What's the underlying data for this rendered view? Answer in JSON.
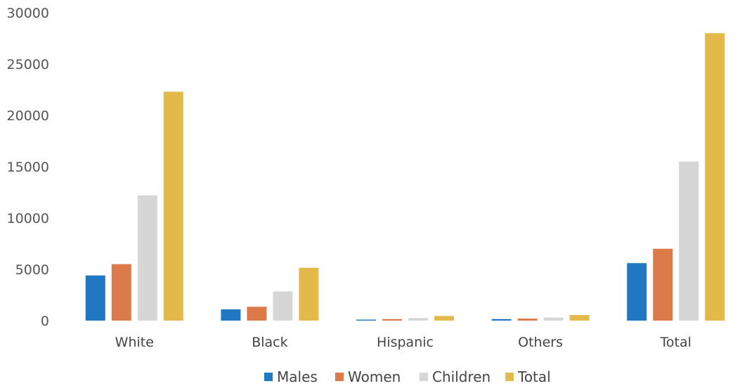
{
  "chart_data": {
    "type": "bar",
    "categories": [
      "White",
      "Black",
      "Hispanic",
      "Others",
      "Total"
    ],
    "series": [
      {
        "name": "Males",
        "color": "#1f78c1",
        "values": [
          4400,
          1100,
          100,
          150,
          5600
        ]
      },
      {
        "name": "Women",
        "color": "#dd7a4a",
        "values": [
          5500,
          1350,
          150,
          200,
          7000
        ]
      },
      {
        "name": "Children",
        "color": "#d6d6d6",
        "values": [
          12200,
          2850,
          250,
          300,
          15500
        ]
      },
      {
        "name": "Total",
        "color": "#e3b94a",
        "values": [
          22300,
          5150,
          450,
          550,
          28000
        ]
      }
    ],
    "ylim": [
      0,
      30000
    ],
    "yticks": [
      "0",
      "5000",
      "10000",
      "15000",
      "20000",
      "25000",
      "30000"
    ],
    "legend_position": "bottom",
    "grid": false
  }
}
